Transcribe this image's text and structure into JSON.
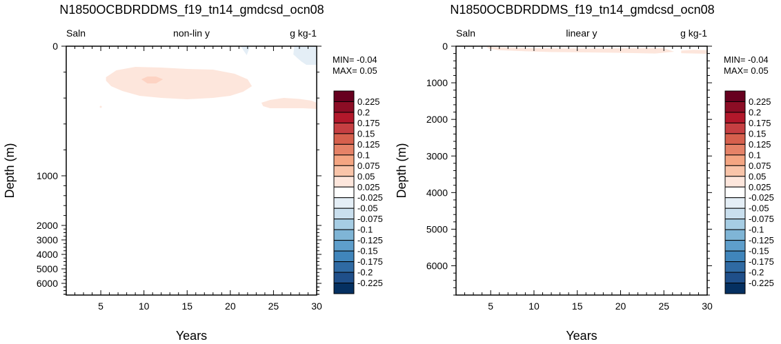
{
  "chart_data": [
    {
      "type": "heatmap",
      "title": "N1850OCBDRDDMS_f19_tn14_gmdcsd_ocn08",
      "left_string": "Saln",
      "center_string": "non-lin y",
      "right_string": "g kg-1",
      "xlabel": "Years",
      "ylabel": "Depth (m)",
      "xlim": [
        1,
        30
      ],
      "ylim": [
        6700,
        0
      ],
      "y_scale": "non-linear",
      "x_ticks": [
        "5",
        "10",
        "15",
        "20",
        "25",
        "30"
      ],
      "y_ticks": [
        "0",
        "1000",
        "2000",
        "3000",
        "4000",
        "5000",
        "6000"
      ],
      "min_label": "MIN= -0.04",
      "max_label": "MAX=  0.05",
      "contours": [
        {
          "level": 0.025,
          "color": "#fde6dc",
          "points": [
            [
              5.6,
              45
            ],
            [
              6.8,
              35
            ],
            [
              9,
              30
            ],
            [
              12,
              31
            ],
            [
              15,
              33
            ],
            [
              18,
              34
            ],
            [
              20.5,
              40
            ],
            [
              22,
              48
            ],
            [
              22.5,
              58
            ],
            [
              21.5,
              66
            ],
            [
              20,
              72
            ],
            [
              18,
              75
            ],
            [
              15,
              77
            ],
            [
              12,
              75
            ],
            [
              9.5,
              72
            ],
            [
              7.5,
              65
            ],
            [
              6.2,
              58
            ],
            [
              5.6,
              50
            ]
          ]
        },
        {
          "level": 0.025,
          "color": "#fde6dc",
          "points": [
            [
              23.6,
              82
            ],
            [
              24.6,
              78
            ],
            [
              26.2,
              75
            ],
            [
              28,
              76.5
            ],
            [
              29.4,
              79
            ],
            [
              30,
              82
            ],
            [
              30,
              91
            ],
            [
              28.4,
              90
            ],
            [
              26.5,
              90
            ],
            [
              24.6,
              90
            ],
            [
              23.8,
              87
            ]
          ]
        },
        {
          "level": 0.05,
          "color": "#fdd3c3",
          "points": [
            [
              9.7,
              48
            ],
            [
              10.4,
              44
            ],
            [
              11.4,
              44
            ],
            [
              12.2,
              48
            ],
            [
              11.4,
              54
            ],
            [
              10.4,
              54
            ]
          ]
        },
        {
          "level": -0.025,
          "color": "#e4eef6",
          "points": [
            [
              27.4,
              0
            ],
            [
              30,
              0
            ],
            [
              30,
              27
            ],
            [
              28.8,
              27
            ],
            [
              28.2,
              22
            ],
            [
              27.3,
              12
            ]
          ]
        },
        {
          "level": -0.025,
          "color": "#e4eef6",
          "points": [
            [
              21.2,
              0
            ],
            [
              22.3,
              0
            ],
            [
              21.9,
              13
            ]
          ]
        }
      ]
    },
    {
      "type": "heatmap",
      "title": "N1850OCBDRDDMS_f19_tn14_gmdcsd_ocn08",
      "left_string": "Saln",
      "center_string": "linear y",
      "right_string": "g kg-1",
      "xlabel": "Years",
      "ylabel": "Depth (m)",
      "xlim": [
        1,
        30
      ],
      "ylim": [
        6800,
        0
      ],
      "y_scale": "linear",
      "x_ticks": [
        "5",
        "10",
        "15",
        "20",
        "25",
        "30"
      ],
      "y_ticks": [
        "0",
        "1000",
        "2000",
        "3000",
        "4000",
        "5000",
        "6000"
      ],
      "min_label": "MIN= -0.04",
      "max_label": "MAX=  0.05",
      "contours": [
        {
          "level": 0.025,
          "color": "#fde6dc",
          "points": [
            [
              4.5,
              15
            ],
            [
              6,
              35
            ],
            [
              10,
              55
            ],
            [
              14,
              60
            ],
            [
              18,
              60
            ],
            [
              22,
              55
            ],
            [
              25,
              55
            ],
            [
              26.2,
              150
            ],
            [
              24,
              200
            ],
            [
              20,
              180
            ],
            [
              16,
              170
            ],
            [
              12,
              160
            ],
            [
              9,
              140
            ],
            [
              6,
              110
            ],
            [
              4.8,
              70
            ]
          ]
        },
        {
          "level": 0.025,
          "color": "#fde6dc",
          "points": [
            [
              27,
              120
            ],
            [
              28.5,
              100
            ],
            [
              30,
              110
            ],
            [
              30,
              210
            ],
            [
              28.5,
              200
            ],
            [
              27,
              190
            ]
          ]
        }
      ]
    }
  ],
  "colorbar": {
    "labels": [
      "0.225",
      "0.2",
      "0.175",
      "0.15",
      "0.125",
      "0.1",
      "0.075",
      "0.05",
      "0.025",
      "-0.025",
      "-0.05",
      "-0.075",
      "-0.1",
      "-0.125",
      "-0.15",
      "-0.175",
      "-0.2",
      "-0.225"
    ],
    "colors": [
      "#67001f",
      "#8c0d25",
      "#b2182b",
      "#c63f42",
      "#d6604d",
      "#e58267",
      "#f4a582",
      "#f9c4a9",
      "#fde6dc",
      "#ffffff",
      "#e4eef6",
      "#c9dfee",
      "#a6cde4",
      "#7fb5d6",
      "#5e9ecb",
      "#4085bb",
      "#2f6aa3",
      "#1f4f8a",
      "#053061"
    ]
  }
}
